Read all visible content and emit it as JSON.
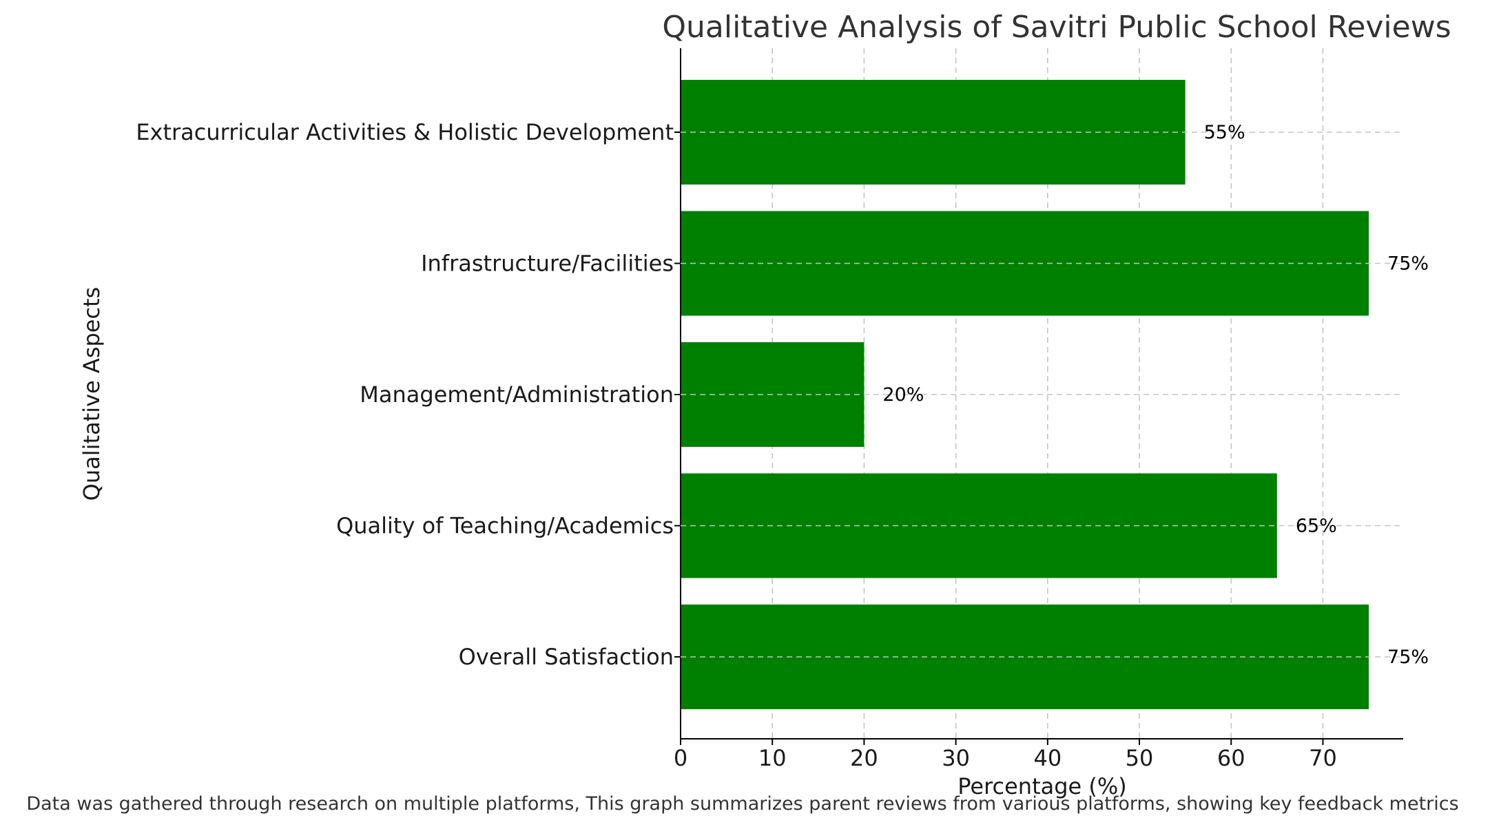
{
  "chart_data": {
    "type": "bar",
    "orientation": "horizontal",
    "title": "Qualitative Analysis of Savitri Public School Reviews",
    "xlabel": "Percentage (%)",
    "ylabel": "Qualitative Aspects",
    "categories": [
      "Overall Satisfaction",
      "Quality of Teaching/Academics",
      "Management/Administration",
      "Infrastructure/Facilities",
      "Extracurricular Activities & Holistic Development"
    ],
    "values": [
      75,
      65,
      20,
      75,
      55
    ],
    "data_labels": [
      "75%",
      "65%",
      "20%",
      "75%",
      "55%"
    ],
    "xlim": [
      0,
      78.75
    ],
    "xticks": [
      0,
      10,
      20,
      30,
      40,
      50,
      60,
      70
    ],
    "bar_color": "#008000",
    "grid": true,
    "legend": false
  },
  "footnote": "Data was gathered through research on multiple platforms, This graph summarizes parent reviews from various platforms, showing key feedback metrics"
}
